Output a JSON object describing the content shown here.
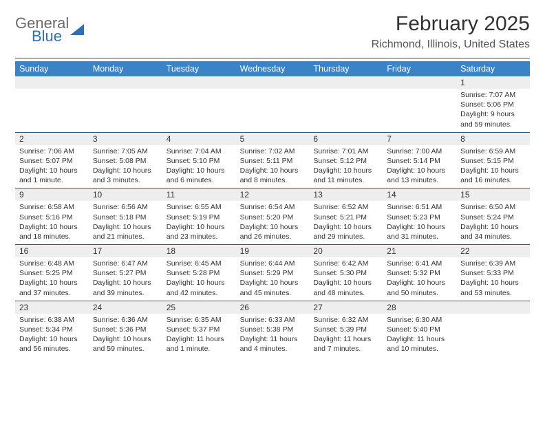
{
  "logo": {
    "general": "General",
    "blue": "Blue"
  },
  "title": "February 2025",
  "location": "Richmond, Illinois, United States",
  "colors": {
    "header_bg": "#3b83c7",
    "header_text": "#ffffff",
    "daynum_bg": "#eeeeee",
    "week_border": "#2b5a8a",
    "accent": "#2a71b8"
  },
  "dow": [
    "Sunday",
    "Monday",
    "Tuesday",
    "Wednesday",
    "Thursday",
    "Friday",
    "Saturday"
  ],
  "weeks": [
    [
      {
        "n": "",
        "sr": "",
        "ss": "",
        "dl": ""
      },
      {
        "n": "",
        "sr": "",
        "ss": "",
        "dl": ""
      },
      {
        "n": "",
        "sr": "",
        "ss": "",
        "dl": ""
      },
      {
        "n": "",
        "sr": "",
        "ss": "",
        "dl": ""
      },
      {
        "n": "",
        "sr": "",
        "ss": "",
        "dl": ""
      },
      {
        "n": "",
        "sr": "",
        "ss": "",
        "dl": ""
      },
      {
        "n": "1",
        "sr": "Sunrise: 7:07 AM",
        "ss": "Sunset: 5:06 PM",
        "dl": "Daylight: 9 hours and 59 minutes."
      }
    ],
    [
      {
        "n": "2",
        "sr": "Sunrise: 7:06 AM",
        "ss": "Sunset: 5:07 PM",
        "dl": "Daylight: 10 hours and 1 minute."
      },
      {
        "n": "3",
        "sr": "Sunrise: 7:05 AM",
        "ss": "Sunset: 5:08 PM",
        "dl": "Daylight: 10 hours and 3 minutes."
      },
      {
        "n": "4",
        "sr": "Sunrise: 7:04 AM",
        "ss": "Sunset: 5:10 PM",
        "dl": "Daylight: 10 hours and 6 minutes."
      },
      {
        "n": "5",
        "sr": "Sunrise: 7:02 AM",
        "ss": "Sunset: 5:11 PM",
        "dl": "Daylight: 10 hours and 8 minutes."
      },
      {
        "n": "6",
        "sr": "Sunrise: 7:01 AM",
        "ss": "Sunset: 5:12 PM",
        "dl": "Daylight: 10 hours and 11 minutes."
      },
      {
        "n": "7",
        "sr": "Sunrise: 7:00 AM",
        "ss": "Sunset: 5:14 PM",
        "dl": "Daylight: 10 hours and 13 minutes."
      },
      {
        "n": "8",
        "sr": "Sunrise: 6:59 AM",
        "ss": "Sunset: 5:15 PM",
        "dl": "Daylight: 10 hours and 16 minutes."
      }
    ],
    [
      {
        "n": "9",
        "sr": "Sunrise: 6:58 AM",
        "ss": "Sunset: 5:16 PM",
        "dl": "Daylight: 10 hours and 18 minutes."
      },
      {
        "n": "10",
        "sr": "Sunrise: 6:56 AM",
        "ss": "Sunset: 5:18 PM",
        "dl": "Daylight: 10 hours and 21 minutes."
      },
      {
        "n": "11",
        "sr": "Sunrise: 6:55 AM",
        "ss": "Sunset: 5:19 PM",
        "dl": "Daylight: 10 hours and 23 minutes."
      },
      {
        "n": "12",
        "sr": "Sunrise: 6:54 AM",
        "ss": "Sunset: 5:20 PM",
        "dl": "Daylight: 10 hours and 26 minutes."
      },
      {
        "n": "13",
        "sr": "Sunrise: 6:52 AM",
        "ss": "Sunset: 5:21 PM",
        "dl": "Daylight: 10 hours and 29 minutes."
      },
      {
        "n": "14",
        "sr": "Sunrise: 6:51 AM",
        "ss": "Sunset: 5:23 PM",
        "dl": "Daylight: 10 hours and 31 minutes."
      },
      {
        "n": "15",
        "sr": "Sunrise: 6:50 AM",
        "ss": "Sunset: 5:24 PM",
        "dl": "Daylight: 10 hours and 34 minutes."
      }
    ],
    [
      {
        "n": "16",
        "sr": "Sunrise: 6:48 AM",
        "ss": "Sunset: 5:25 PM",
        "dl": "Daylight: 10 hours and 37 minutes."
      },
      {
        "n": "17",
        "sr": "Sunrise: 6:47 AM",
        "ss": "Sunset: 5:27 PM",
        "dl": "Daylight: 10 hours and 39 minutes."
      },
      {
        "n": "18",
        "sr": "Sunrise: 6:45 AM",
        "ss": "Sunset: 5:28 PM",
        "dl": "Daylight: 10 hours and 42 minutes."
      },
      {
        "n": "19",
        "sr": "Sunrise: 6:44 AM",
        "ss": "Sunset: 5:29 PM",
        "dl": "Daylight: 10 hours and 45 minutes."
      },
      {
        "n": "20",
        "sr": "Sunrise: 6:42 AM",
        "ss": "Sunset: 5:30 PM",
        "dl": "Daylight: 10 hours and 48 minutes."
      },
      {
        "n": "21",
        "sr": "Sunrise: 6:41 AM",
        "ss": "Sunset: 5:32 PM",
        "dl": "Daylight: 10 hours and 50 minutes."
      },
      {
        "n": "22",
        "sr": "Sunrise: 6:39 AM",
        "ss": "Sunset: 5:33 PM",
        "dl": "Daylight: 10 hours and 53 minutes."
      }
    ],
    [
      {
        "n": "23",
        "sr": "Sunrise: 6:38 AM",
        "ss": "Sunset: 5:34 PM",
        "dl": "Daylight: 10 hours and 56 minutes."
      },
      {
        "n": "24",
        "sr": "Sunrise: 6:36 AM",
        "ss": "Sunset: 5:36 PM",
        "dl": "Daylight: 10 hours and 59 minutes."
      },
      {
        "n": "25",
        "sr": "Sunrise: 6:35 AM",
        "ss": "Sunset: 5:37 PM",
        "dl": "Daylight: 11 hours and 1 minute."
      },
      {
        "n": "26",
        "sr": "Sunrise: 6:33 AM",
        "ss": "Sunset: 5:38 PM",
        "dl": "Daylight: 11 hours and 4 minutes."
      },
      {
        "n": "27",
        "sr": "Sunrise: 6:32 AM",
        "ss": "Sunset: 5:39 PM",
        "dl": "Daylight: 11 hours and 7 minutes."
      },
      {
        "n": "28",
        "sr": "Sunrise: 6:30 AM",
        "ss": "Sunset: 5:40 PM",
        "dl": "Daylight: 11 hours and 10 minutes."
      },
      {
        "n": "",
        "sr": "",
        "ss": "",
        "dl": ""
      }
    ]
  ]
}
